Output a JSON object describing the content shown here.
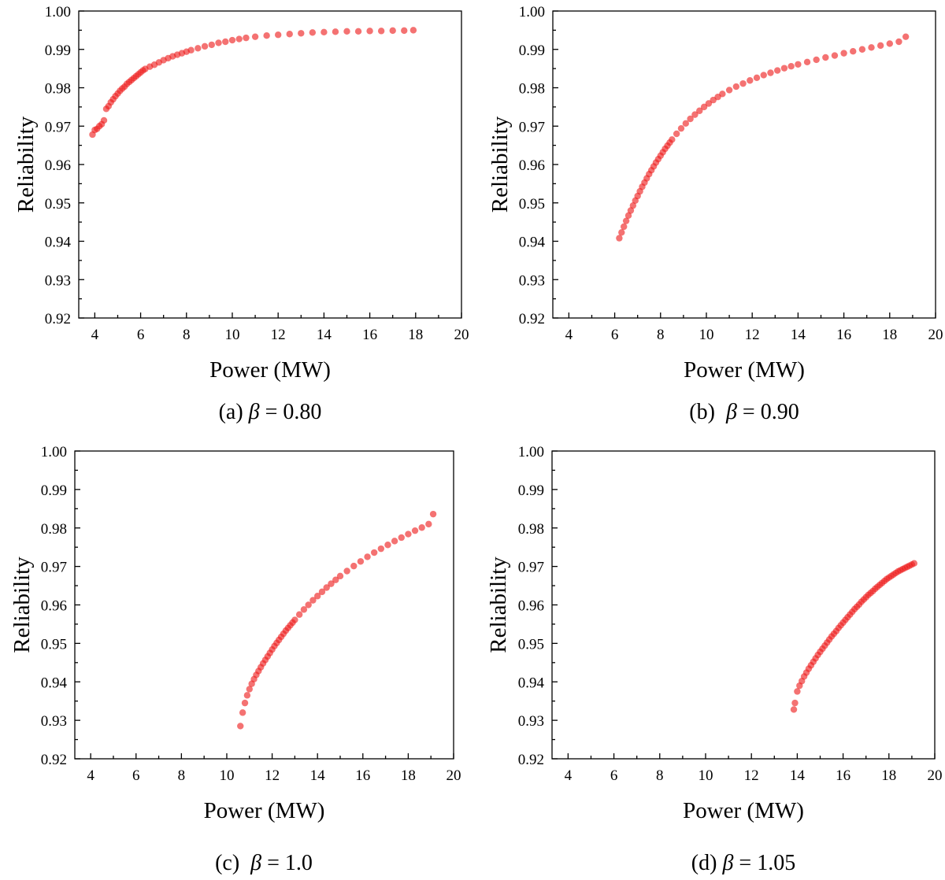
{
  "chart_data": [
    {
      "type": "scatter",
      "caption": {
        "prefix": "(a) ",
        "symbol": "β",
        "rest": " = 0.80"
      },
      "xlabel": "Power (MW)",
      "ylabel": "Reliability",
      "xlim": [
        3.3,
        20
      ],
      "ylim": [
        0.92,
        1.0
      ],
      "xticks": [
        "4",
        "6",
        "8",
        "10",
        "12",
        "14",
        "16",
        "18",
        "20"
      ],
      "yticks": [
        "0.92",
        "0.93",
        "0.94",
        "0.95",
        "0.96",
        "0.97",
        "0.98",
        "0.99",
        "1.00"
      ],
      "color": "#ee1c1c",
      "x": [
        3.9,
        4.0,
        4.1,
        4.2,
        4.3,
        4.4,
        4.5,
        4.6,
        4.7,
        4.8,
        4.9,
        5.0,
        5.1,
        5.2,
        5.3,
        5.4,
        5.5,
        5.6,
        5.7,
        5.8,
        5.9,
        6.0,
        6.1,
        6.2,
        6.4,
        6.6,
        6.8,
        7.0,
        7.2,
        7.4,
        7.6,
        7.8,
        8.0,
        8.2,
        8.5,
        8.8,
        9.1,
        9.4,
        9.7,
        10.0,
        10.3,
        10.6,
        11.0,
        11.5,
        12.0,
        12.5,
        13.0,
        13.5,
        14.0,
        14.5,
        15.0,
        15.5,
        16.0,
        16.5,
        17.0,
        17.5,
        17.9
      ],
      "y": [
        0.9678,
        0.969,
        0.9693,
        0.97,
        0.9705,
        0.9715,
        0.9745,
        0.9752,
        0.9762,
        0.977,
        0.9778,
        0.9785,
        0.9792,
        0.9798,
        0.9803,
        0.981,
        0.9815,
        0.982,
        0.9825,
        0.983,
        0.9835,
        0.984,
        0.9845,
        0.9849,
        0.9855,
        0.986,
        0.9866,
        0.9872,
        0.9877,
        0.9882,
        0.9886,
        0.989,
        0.9894,
        0.9898,
        0.9903,
        0.9908,
        0.9912,
        0.9917,
        0.992,
        0.9924,
        0.9927,
        0.993,
        0.9933,
        0.9936,
        0.9938,
        0.994,
        0.9942,
        0.9944,
        0.9945,
        0.9946,
        0.9947,
        0.9947,
        0.9948,
        0.9948,
        0.9949,
        0.9949,
        0.995
      ]
    },
    {
      "type": "scatter",
      "caption": {
        "prefix": "(b)  ",
        "symbol": "β",
        "rest": " = 0.90"
      },
      "xlabel": "Power (MW)",
      "ylabel": "Reliability",
      "xlim": [
        3.3,
        20
      ],
      "ylim": [
        0.92,
        1.0
      ],
      "xticks": [
        "4",
        "6",
        "8",
        "10",
        "12",
        "14",
        "16",
        "18",
        "20"
      ],
      "yticks": [
        "0.92",
        "0.93",
        "0.94",
        "0.95",
        "0.96",
        "0.97",
        "0.98",
        "0.99",
        "1.00"
      ],
      "color": "#ee1c1c",
      "x": [
        6.2,
        6.3,
        6.4,
        6.5,
        6.6,
        6.7,
        6.8,
        6.9,
        7.0,
        7.1,
        7.2,
        7.3,
        7.4,
        7.5,
        7.6,
        7.7,
        7.8,
        7.9,
        8.0,
        8.1,
        8.2,
        8.3,
        8.4,
        8.5,
        8.7,
        8.9,
        9.1,
        9.3,
        9.5,
        9.7,
        9.9,
        10.1,
        10.3,
        10.5,
        10.7,
        11.0,
        11.3,
        11.6,
        11.9,
        12.2,
        12.5,
        12.8,
        13.1,
        13.4,
        13.7,
        14.0,
        14.4,
        14.8,
        15.2,
        15.6,
        16.0,
        16.4,
        16.8,
        17.2,
        17.6,
        18.0,
        18.4,
        18.7
      ],
      "y": [
        0.9408,
        0.9423,
        0.9438,
        0.9453,
        0.9467,
        0.948,
        0.9493,
        0.9506,
        0.9518,
        0.953,
        0.9542,
        0.9553,
        0.9564,
        0.9575,
        0.9585,
        0.9595,
        0.9605,
        0.9614,
        0.9623,
        0.9632,
        0.9641,
        0.9649,
        0.9657,
        0.9665,
        0.968,
        0.9694,
        0.9707,
        0.9719,
        0.973,
        0.974,
        0.975,
        0.9759,
        0.9768,
        0.9776,
        0.9784,
        0.9794,
        0.9803,
        0.9811,
        0.9819,
        0.9826,
        0.9833,
        0.9839,
        0.9845,
        0.9851,
        0.9856,
        0.9861,
        0.9867,
        0.9873,
        0.9879,
        0.9884,
        0.989,
        0.9895,
        0.99,
        0.9905,
        0.991,
        0.9915,
        0.992,
        0.9933
      ]
    },
    {
      "type": "scatter",
      "caption": {
        "prefix": "(c)  ",
        "symbol": "β",
        "rest": " = 1.0"
      },
      "xlabel": "Power (MW)",
      "ylabel": "Reliability",
      "xlim": [
        3.3,
        20
      ],
      "ylim": [
        0.92,
        1.0
      ],
      "xticks": [
        "4",
        "6",
        "8",
        "10",
        "12",
        "14",
        "16",
        "18",
        "20"
      ],
      "yticks": [
        "0.92",
        "0.93",
        "0.94",
        "0.95",
        "0.96",
        "0.97",
        "0.98",
        "0.99",
        "1.00"
      ],
      "color": "#ee1c1c",
      "x": [
        10.6,
        10.7,
        10.8,
        10.9,
        11.0,
        11.1,
        11.2,
        11.3,
        11.4,
        11.5,
        11.6,
        11.7,
        11.8,
        11.9,
        12.0,
        12.1,
        12.2,
        12.3,
        12.4,
        12.5,
        12.6,
        12.7,
        12.8,
        12.9,
        13.0,
        13.2,
        13.4,
        13.6,
        13.8,
        14.0,
        14.2,
        14.4,
        14.6,
        14.8,
        15.0,
        15.3,
        15.6,
        15.9,
        16.2,
        16.5,
        16.8,
        17.1,
        17.4,
        17.7,
        18.0,
        18.3,
        18.6,
        18.9,
        19.1
      ],
      "y": [
        0.9285,
        0.932,
        0.9345,
        0.9365,
        0.9381,
        0.9395,
        0.9407,
        0.9418,
        0.9428,
        0.9438,
        0.9448,
        0.9457,
        0.9466,
        0.9475,
        0.9484,
        0.9493,
        0.9501,
        0.9509,
        0.9517,
        0.9525,
        0.9533,
        0.954,
        0.9547,
        0.9554,
        0.9561,
        0.9575,
        0.9588,
        0.96,
        0.9612,
        0.9623,
        0.9634,
        0.9645,
        0.9655,
        0.9665,
        0.9675,
        0.9688,
        0.9701,
        0.9713,
        0.9725,
        0.9736,
        0.9746,
        0.9756,
        0.9766,
        0.9775,
        0.9784,
        0.9793,
        0.9801,
        0.981,
        0.9836
      ]
    },
    {
      "type": "scatter",
      "caption": {
        "prefix": "(d) ",
        "symbol": "β",
        "rest": " = 1.05"
      },
      "xlabel": "Power (MW)",
      "ylabel": "Reliability",
      "xlim": [
        3.3,
        20
      ],
      "ylim": [
        0.92,
        1.0
      ],
      "xticks": [
        "4",
        "6",
        "8",
        "10",
        "12",
        "14",
        "16",
        "18",
        "20"
      ],
      "yticks": [
        "0.92",
        "0.93",
        "0.94",
        "0.95",
        "0.96",
        "0.97",
        "0.98",
        "0.99",
        "1.00"
      ],
      "color": "#ee1c1c",
      "x": [
        13.85,
        13.9,
        14.0,
        14.1,
        14.2,
        14.3,
        14.4,
        14.5,
        14.6,
        14.7,
        14.8,
        14.9,
        15.0,
        15.1,
        15.2,
        15.3,
        15.4,
        15.5,
        15.6,
        15.7,
        15.8,
        15.9,
        16.0,
        16.1,
        16.2,
        16.3,
        16.4,
        16.5,
        16.6,
        16.7,
        16.8,
        16.9,
        17.0,
        17.1,
        17.2,
        17.3,
        17.4,
        17.5,
        17.6,
        17.7,
        17.8,
        17.9,
        18.0,
        18.1,
        18.2,
        18.3,
        18.4,
        18.5,
        18.6,
        18.7,
        18.8,
        18.9,
        19.0,
        19.1
      ],
      "y": [
        0.9328,
        0.9345,
        0.9375,
        0.939,
        0.9402,
        0.9414,
        0.9424,
        0.9434,
        0.9443,
        0.9452,
        0.9461,
        0.947,
        0.9478,
        0.9486,
        0.9494,
        0.9502,
        0.951,
        0.9518,
        0.9525,
        0.9532,
        0.954,
        0.9547,
        0.9554,
        0.9561,
        0.9568,
        0.9575,
        0.9582,
        0.9589,
        0.9595,
        0.9601,
        0.9608,
        0.9614,
        0.962,
        0.9626,
        0.9631,
        0.9636,
        0.9642,
        0.9647,
        0.9652,
        0.9657,
        0.9662,
        0.9667,
        0.9671,
        0.9675,
        0.9679,
        0.9683,
        0.9687,
        0.969,
        0.9693,
        0.9696,
        0.9699,
        0.9702,
        0.9705,
        0.9708
      ]
    }
  ]
}
